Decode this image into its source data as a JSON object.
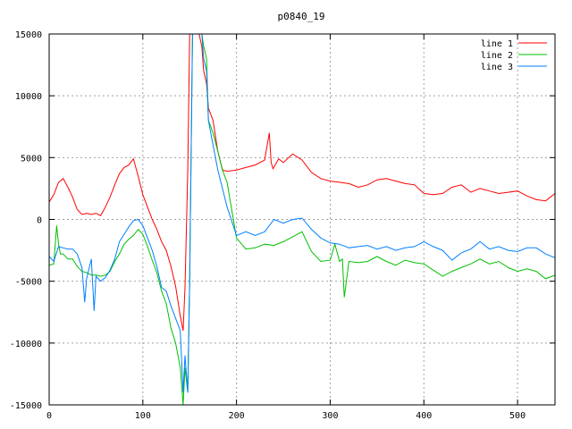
{
  "chart_data": {
    "type": "line",
    "title": "p0840_19",
    "xlabel": "",
    "ylabel": "",
    "xlim": [
      0,
      540
    ],
    "ylim": [
      -15000,
      15000
    ],
    "xticks": [
      0,
      100,
      200,
      300,
      400,
      500
    ],
    "yticks": [
      -15000,
      -10000,
      -5000,
      0,
      5000,
      10000,
      15000
    ],
    "grid": true,
    "legend_position": "top-right",
    "series": [
      {
        "name": "line 1",
        "color": "#ff0000",
        "x": [
          0,
          5,
          10,
          15,
          20,
          25,
          30,
          35,
          40,
          45,
          50,
          55,
          60,
          65,
          70,
          75,
          80,
          85,
          90,
          95,
          100,
          105,
          110,
          115,
          120,
          125,
          130,
          135,
          140,
          143,
          145,
          148,
          150,
          153,
          155,
          158,
          160,
          163,
          165,
          168,
          170,
          175,
          180,
          185,
          190,
          200,
          210,
          220,
          230,
          235,
          237,
          239,
          245,
          250,
          260,
          270,
          280,
          290,
          300,
          310,
          320,
          330,
          340,
          350,
          360,
          370,
          380,
          390,
          400,
          410,
          420,
          430,
          440,
          450,
          460,
          470,
          480,
          490,
          500,
          510,
          520,
          530,
          540
        ],
        "values": [
          1400,
          2000,
          3000,
          3300,
          2600,
          1800,
          800,
          400,
          500,
          400,
          500,
          300,
          1000,
          1800,
          2800,
          3700,
          4200,
          4400,
          4900,
          3500,
          2000,
          1000,
          0,
          -800,
          -1800,
          -2500,
          -3800,
          -5400,
          -7800,
          -9000,
          -5500,
          4000,
          15000,
          15000,
          15000,
          15000,
          15000,
          14000,
          12000,
          11000,
          9000,
          8000,
          5500,
          4000,
          3900,
          4000,
          4200,
          4400,
          4800,
          7000,
          4600,
          4100,
          4900,
          4600,
          5300,
          4800,
          3800,
          3300,
          3100,
          3000,
          2900,
          2600,
          2800,
          3200,
          3300,
          3100,
          2900,
          2800,
          2100,
          2000,
          2100,
          2600,
          2800,
          2200,
          2500,
          2300,
          2100,
          2200,
          2300,
          1900,
          1600,
          1500,
          2100
        ]
      },
      {
        "name": "line 2",
        "color": "#00c000",
        "x": [
          0,
          5,
          8,
          10,
          12,
          15,
          20,
          25,
          30,
          35,
          40,
          45,
          50,
          55,
          60,
          65,
          70,
          75,
          80,
          85,
          90,
          95,
          100,
          105,
          110,
          115,
          120,
          125,
          130,
          135,
          140,
          143,
          145,
          148,
          150,
          153,
          155,
          158,
          160,
          163,
          165,
          168,
          170,
          175,
          180,
          185,
          190,
          200,
          210,
          220,
          230,
          240,
          250,
          260,
          270,
          280,
          290,
          300,
          305,
          310,
          313,
          315,
          320,
          330,
          340,
          350,
          360,
          370,
          380,
          390,
          400,
          410,
          420,
          430,
          440,
          450,
          460,
          470,
          480,
          490,
          500,
          510,
          520,
          530,
          540
        ],
        "values": [
          -3700,
          -3600,
          -500,
          -2000,
          -2800,
          -2800,
          -3200,
          -3200,
          -3800,
          -4200,
          -4300,
          -4500,
          -4500,
          -4600,
          -4500,
          -4200,
          -3400,
          -2800,
          -2000,
          -1600,
          -1300,
          -800,
          -1200,
          -2200,
          -3300,
          -4300,
          -5800,
          -6800,
          -8800,
          -10000,
          -12000,
          -15000,
          -12000,
          -14000,
          -5000,
          15000,
          15000,
          15000,
          15000,
          15000,
          14000,
          13000,
          8000,
          7000,
          5500,
          4000,
          3000,
          -1500,
          -2400,
          -2300,
          -2000,
          -2100,
          -1800,
          -1400,
          -1000,
          -2600,
          -3400,
          -3300,
          -2000,
          -3400,
          -3200,
          -6300,
          -3400,
          -3500,
          -3400,
          -3000,
          -3400,
          -3700,
          -3300,
          -3500,
          -3600,
          -4100,
          -4600,
          -4200,
          -3900,
          -3600,
          -3200,
          -3600,
          -3400,
          -3900,
          -4200,
          -4000,
          -4200,
          -4800,
          -4500
        ]
      },
      {
        "name": "line 3",
        "color": "#0080ff",
        "x": [
          0,
          5,
          10,
          15,
          20,
          25,
          30,
          35,
          38,
          40,
          45,
          48,
          50,
          55,
          60,
          65,
          70,
          75,
          80,
          85,
          90,
          95,
          100,
          105,
          110,
          115,
          120,
          125,
          130,
          135,
          140,
          143,
          145,
          148,
          150,
          153,
          155,
          158,
          160,
          163,
          165,
          168,
          170,
          175,
          180,
          185,
          190,
          200,
          210,
          220,
          230,
          240,
          250,
          260,
          270,
          280,
          290,
          300,
          310,
          320,
          330,
          340,
          350,
          360,
          370,
          380,
          390,
          400,
          410,
          420,
          430,
          440,
          450,
          460,
          470,
          480,
          490,
          500,
          510,
          520,
          530,
          540
        ],
        "values": [
          -3000,
          -3400,
          -2200,
          -2300,
          -2400,
          -2400,
          -2800,
          -3900,
          -6700,
          -4800,
          -3200,
          -7400,
          -4600,
          -5000,
          -4700,
          -4100,
          -3200,
          -1800,
          -1200,
          -600,
          -100,
          0,
          -500,
          -1500,
          -2500,
          -3800,
          -5500,
          -5800,
          -7000,
          -8000,
          -9000,
          -14000,
          -11000,
          -14000,
          -5000,
          15000,
          15000,
          15000,
          15000,
          15000,
          13000,
          12000,
          8000,
          6000,
          4000,
          2500,
          1000,
          -1300,
          -1000,
          -1300,
          -1000,
          0,
          -300,
          0,
          100,
          -800,
          -1500,
          -1900,
          -2000,
          -2300,
          -2200,
          -2100,
          -2400,
          -2200,
          -2500,
          -2300,
          -2200,
          -1800,
          -2200,
          -2500,
          -3300,
          -2700,
          -2400,
          -1800,
          -2400,
          -2200,
          -2500,
          -2600,
          -2300,
          -2300,
          -2800,
          -3100
        ]
      }
    ]
  }
}
